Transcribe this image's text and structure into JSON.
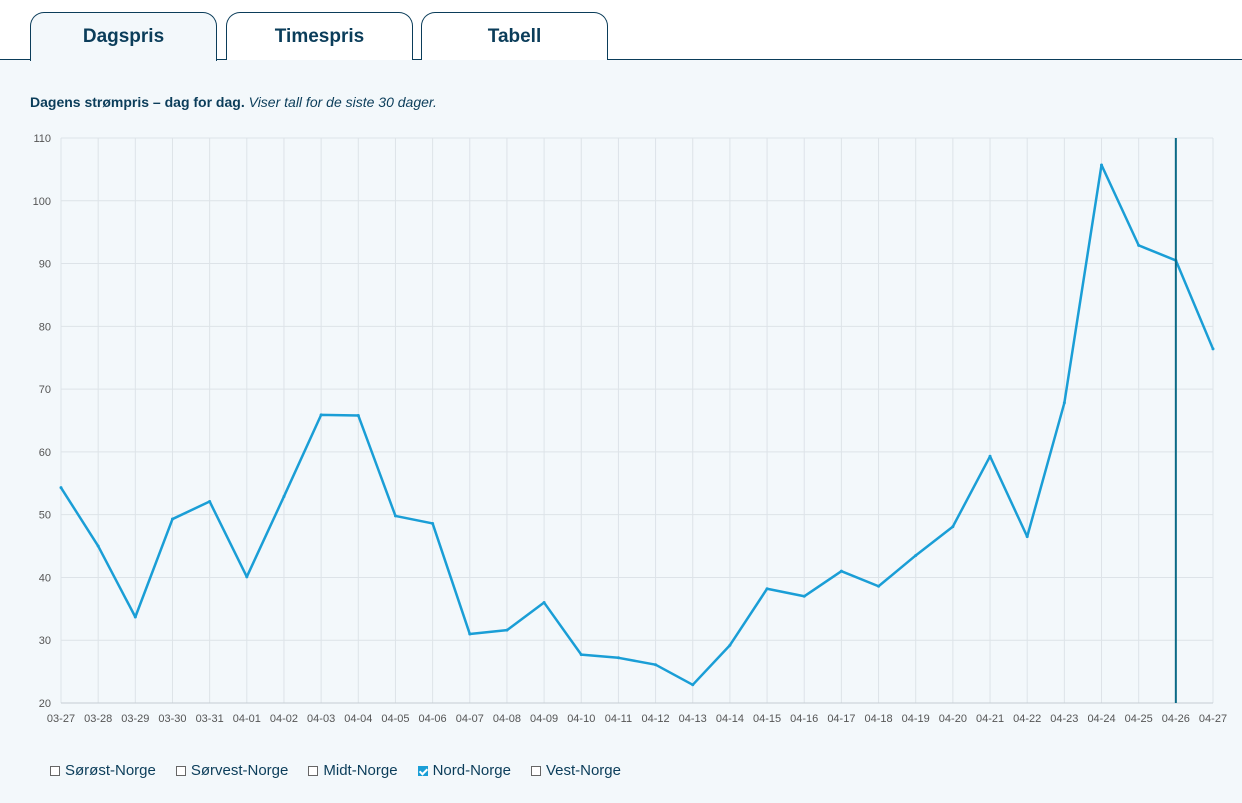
{
  "tabs": [
    {
      "label": "Dagspris",
      "active": true
    },
    {
      "label": "Timespris",
      "active": false
    },
    {
      "label": "Tabell",
      "active": false
    }
  ],
  "description": {
    "bold": "Dagens strømpris – dag for dag.",
    "italic": "Viser tall for de siste 30 dager."
  },
  "colors": {
    "line": "#1a9ed6",
    "marker": "#0b6a86",
    "text": "#0b3d5a",
    "grid": "#dde3e8"
  },
  "chart_data": {
    "type": "line",
    "categories": [
      "03-27",
      "03-28",
      "03-29",
      "03-30",
      "03-31",
      "04-01",
      "04-02",
      "04-03",
      "04-04",
      "04-05",
      "04-06",
      "04-07",
      "04-08",
      "04-09",
      "04-10",
      "04-11",
      "04-12",
      "04-13",
      "04-14",
      "04-15",
      "04-16",
      "04-17",
      "04-18",
      "04-19",
      "04-20",
      "04-21",
      "04-22",
      "04-23",
      "04-24",
      "04-25",
      "04-26",
      "04-27"
    ],
    "series": [
      {
        "name": "Nord-Norge",
        "values": [
          54.3,
          45.0,
          33.7,
          49.3,
          52.1,
          40.1,
          52.9,
          65.9,
          65.8,
          49.8,
          48.6,
          31.0,
          31.6,
          36.0,
          27.7,
          27.2,
          26.1,
          22.9,
          29.2,
          38.2,
          37.0,
          41.0,
          38.6,
          43.5,
          48.1,
          59.3,
          46.5,
          67.8,
          105.7,
          92.9,
          90.5,
          76.4
        ]
      }
    ],
    "ylim": [
      20,
      110
    ],
    "yticks": [
      20,
      30,
      40,
      50,
      60,
      70,
      80,
      90,
      100,
      110
    ],
    "marker_category": "04-26",
    "grid": true,
    "title": "",
    "xlabel": "",
    "ylabel": ""
  },
  "legend": [
    {
      "label": "Sørøst-Norge",
      "checked": false
    },
    {
      "label": "Sørvest-Norge",
      "checked": false
    },
    {
      "label": "Midt-Norge",
      "checked": false
    },
    {
      "label": "Nord-Norge",
      "checked": true
    },
    {
      "label": "Vest-Norge",
      "checked": false
    }
  ]
}
